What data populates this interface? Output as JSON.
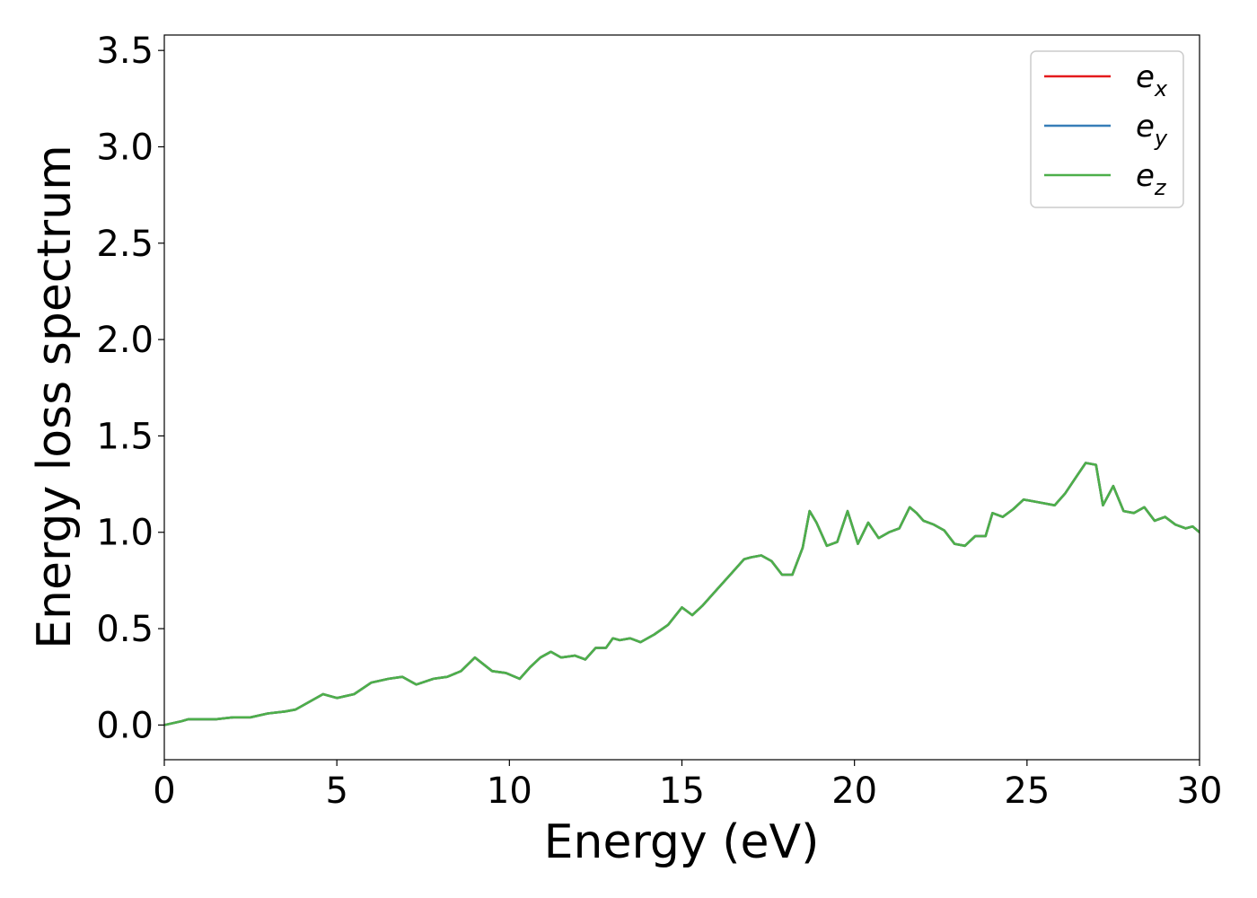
{
  "chart_data": {
    "type": "line",
    "title": "",
    "xlabel": "Energy (eV)",
    "ylabel": "Energy loss spectrum",
    "xlim": [
      0,
      30
    ],
    "ylim": [
      -0.18,
      3.58
    ],
    "xticks": [
      0,
      5,
      10,
      15,
      20,
      25,
      30
    ],
    "xtick_labels": [
      "0",
      "5",
      "10",
      "15",
      "20",
      "25",
      "30"
    ],
    "yticks": [
      0.0,
      0.5,
      1.0,
      1.5,
      2.0,
      2.5,
      3.0,
      3.5
    ],
    "ytick_labels": [
      "0.0",
      "0.5",
      "1.0",
      "1.5",
      "2.0",
      "2.5",
      "3.0",
      "3.5"
    ],
    "grid": false,
    "legend_position": "top-right",
    "x": [
      0,
      0.5,
      0.7,
      1,
      1.5,
      2,
      2.5,
      3,
      3.5,
      3.8,
      4.2,
      4.6,
      5,
      5.5,
      6,
      6.5,
      6.9,
      7.3,
      7.8,
      8.2,
      8.6,
      9.0,
      9.5,
      9.9,
      10.3,
      10.6,
      10.9,
      11.2,
      11.5,
      11.9,
      12.2,
      12.5,
      12.8,
      13.0,
      13.2,
      13.5,
      13.8,
      14.2,
      14.6,
      15.0,
      15.3,
      15.6,
      16.0,
      16.4,
      16.8,
      17.0,
      17.3,
      17.6,
      17.9,
      18.2,
      18.5,
      18.7,
      18.9,
      19.2,
      19.5,
      19.8,
      20.1,
      20.4,
      20.7,
      21.0,
      21.3,
      21.6,
      21.8,
      22.0,
      22.3,
      22.6,
      22.9,
      23.2,
      23.5,
      23.8,
      24.0,
      24.3,
      24.6,
      24.9,
      25.2,
      25.5,
      25.8,
      26.1,
      26.4,
      26.7,
      27.0,
      27.2,
      27.5,
      27.8,
      28.1,
      28.4,
      28.7,
      29.0,
      29.3,
      29.6,
      29.8,
      30.0
    ],
    "series": [
      {
        "name": "e_x",
        "label_base": "e",
        "label_sub": "x",
        "color": "#e41a1c",
        "y": [
          0.0,
          0.02,
          0.03,
          0.03,
          0.03,
          0.04,
          0.04,
          0.06,
          0.07,
          0.08,
          0.12,
          0.16,
          0.14,
          0.16,
          0.22,
          0.24,
          0.25,
          0.21,
          0.24,
          0.25,
          0.28,
          0.35,
          0.28,
          0.27,
          0.24,
          0.3,
          0.35,
          0.38,
          0.35,
          0.36,
          0.34,
          0.4,
          0.4,
          0.45,
          0.44,
          0.45,
          0.43,
          0.47,
          0.52,
          0.61,
          0.57,
          0.62,
          0.7,
          0.78,
          0.86,
          0.87,
          0.88,
          0.85,
          0.78,
          0.78,
          0.92,
          1.11,
          1.05,
          0.93,
          0.95,
          1.11,
          0.94,
          1.05,
          0.97,
          1.0,
          1.02,
          1.13,
          1.1,
          1.06,
          1.04,
          1.01,
          0.94,
          0.93,
          0.98,
          0.98,
          1.1,
          1.08,
          1.12,
          1.17,
          1.16,
          1.15,
          1.14,
          1.2,
          1.28,
          1.36,
          1.35,
          1.14,
          1.24,
          1.11,
          1.1,
          1.13,
          1.06,
          1.08,
          1.04,
          1.02,
          1.03,
          1.0
        ]
      },
      {
        "name": "e_y",
        "label_base": "e",
        "label_sub": "y",
        "color": "#377eb8",
        "y": [
          0.0,
          0.02,
          0.03,
          0.03,
          0.03,
          0.04,
          0.04,
          0.06,
          0.07,
          0.08,
          0.12,
          0.16,
          0.14,
          0.16,
          0.22,
          0.24,
          0.25,
          0.21,
          0.24,
          0.25,
          0.28,
          0.35,
          0.28,
          0.27,
          0.24,
          0.3,
          0.35,
          0.38,
          0.35,
          0.36,
          0.34,
          0.4,
          0.4,
          0.45,
          0.44,
          0.45,
          0.43,
          0.47,
          0.52,
          0.61,
          0.57,
          0.62,
          0.7,
          0.78,
          0.86,
          0.87,
          0.88,
          0.85,
          0.78,
          0.78,
          0.92,
          1.11,
          1.05,
          0.93,
          0.95,
          1.11,
          0.94,
          1.05,
          0.97,
          1.0,
          1.02,
          1.13,
          1.1,
          1.06,
          1.04,
          1.01,
          0.94,
          0.93,
          0.98,
          0.98,
          1.1,
          1.08,
          1.12,
          1.17,
          1.16,
          1.15,
          1.14,
          1.2,
          1.28,
          1.36,
          1.35,
          1.14,
          1.24,
          1.11,
          1.1,
          1.13,
          1.06,
          1.08,
          1.04,
          1.02,
          1.03,
          1.0
        ]
      },
      {
        "name": "e_z",
        "label_base": "e",
        "label_sub": "z",
        "color": "#4daf4a",
        "y": [
          0.0,
          0.02,
          0.03,
          0.03,
          0.03,
          0.04,
          0.04,
          0.06,
          0.07,
          0.08,
          0.12,
          0.16,
          0.14,
          0.16,
          0.22,
          0.24,
          0.25,
          0.21,
          0.24,
          0.25,
          0.28,
          0.35,
          0.28,
          0.27,
          0.24,
          0.3,
          0.35,
          0.38,
          0.35,
          0.36,
          0.34,
          0.4,
          0.4,
          0.45,
          0.44,
          0.45,
          0.43,
          0.47,
          0.52,
          0.61,
          0.57,
          0.62,
          0.7,
          0.78,
          0.86,
          0.87,
          0.88,
          0.85,
          0.78,
          0.78,
          0.92,
          1.11,
          1.05,
          0.93,
          0.95,
          1.11,
          0.94,
          1.05,
          0.97,
          1.0,
          1.02,
          1.13,
          1.1,
          1.06,
          1.04,
          1.01,
          0.94,
          0.93,
          0.98,
          0.98,
          1.1,
          1.08,
          1.12,
          1.17,
          1.16,
          1.15,
          1.14,
          1.2,
          1.28,
          1.36,
          1.35,
          1.14,
          1.24,
          1.11,
          1.1,
          1.13,
          1.06,
          1.08,
          1.04,
          1.02,
          1.03,
          1.0
        ]
      }
    ]
  }
}
